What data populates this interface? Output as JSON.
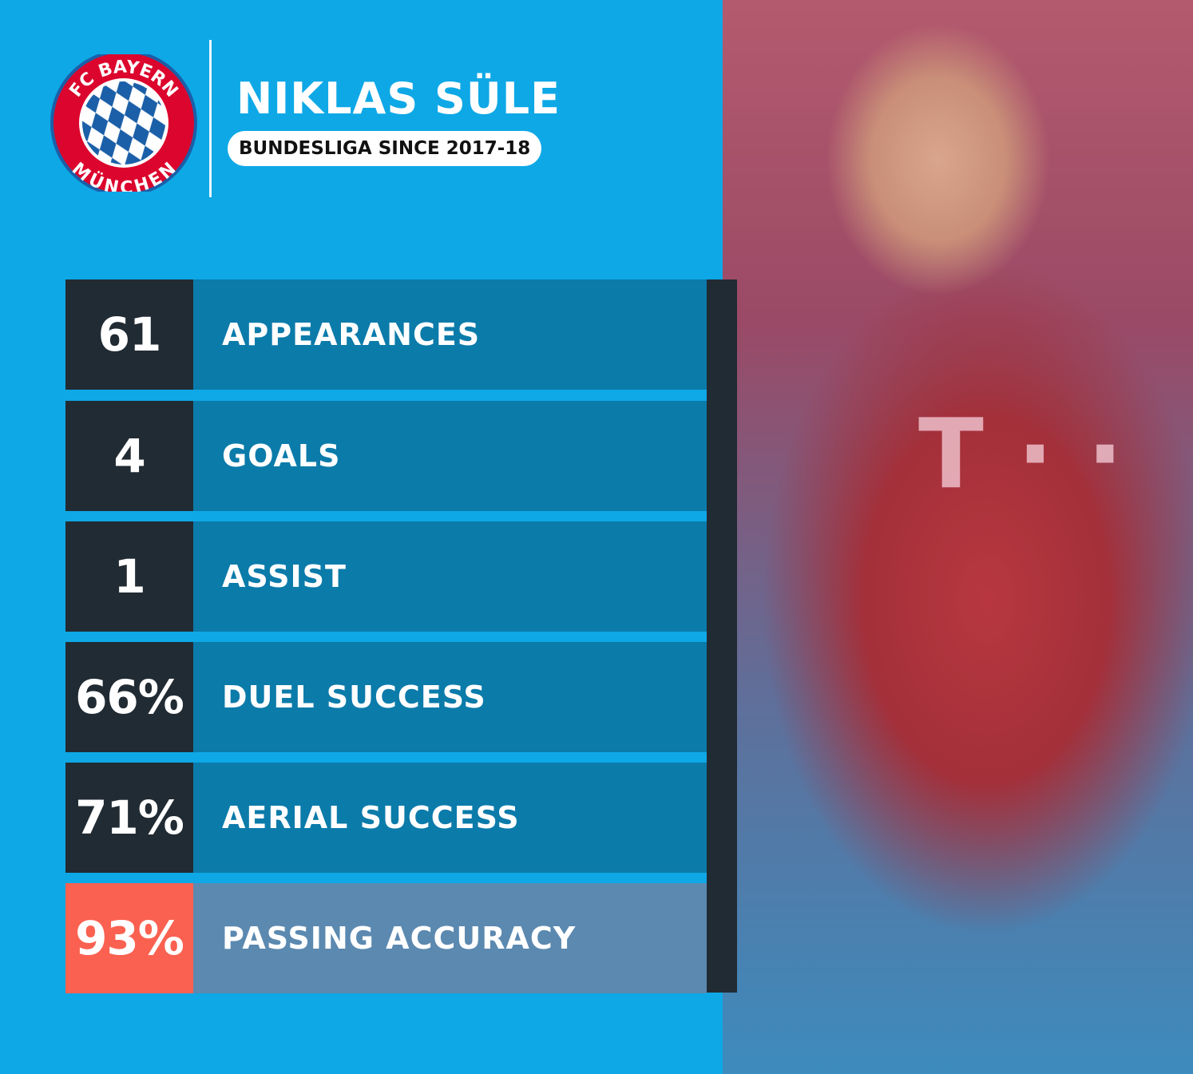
{
  "player": {
    "name": "NIKLAS SÜLE",
    "subtitle": "BUNDESLIGA SINCE 2017-18"
  },
  "club_logo": {
    "top_text": "FC BAYERN",
    "bottom_text": "MÜNCHEN"
  },
  "colors": {
    "background": "#0ea8e6",
    "value_box": "#212b33",
    "label_box": "#0b7baa",
    "highlight_value": "#fb6150",
    "highlight_label": "#5b89b0"
  },
  "stats": [
    {
      "value": "61",
      "label": "APPEARANCES"
    },
    {
      "value": "4",
      "label": "GOALS"
    },
    {
      "value": "1",
      "label": "ASSIST"
    },
    {
      "value": "66%",
      "label": "DUEL SUCCESS"
    },
    {
      "value": "71%",
      "label": "AERIAL SUCCESS"
    },
    {
      "value": "93%",
      "label": "PASSING ACCURACY"
    }
  ]
}
